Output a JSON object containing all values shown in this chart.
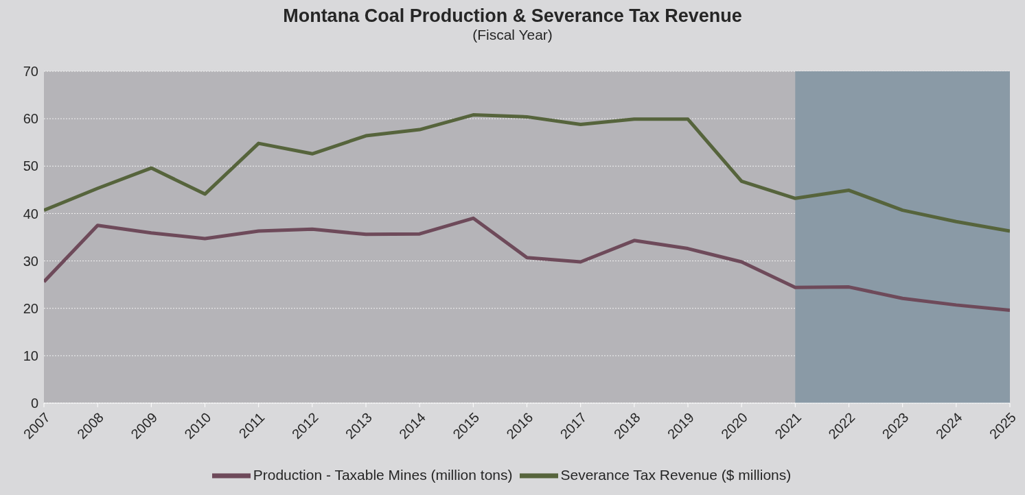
{
  "chart_data": {
    "type": "line",
    "title": "Montana Coal Production & Severance Tax Revenue",
    "subtitle": "(Fiscal Year)",
    "x": [
      2007,
      2008,
      2009,
      2010,
      2011,
      2012,
      2013,
      2014,
      2015,
      2016,
      2017,
      2018,
      2019,
      2020,
      2021,
      2022,
      2023,
      2024,
      2025
    ],
    "xlim": [
      2007,
      2025
    ],
    "xticks": [
      2007,
      2008,
      2009,
      2010,
      2011,
      2012,
      2013,
      2014,
      2015,
      2016,
      2017,
      2018,
      2019,
      2020,
      2021,
      2022,
      2023,
      2024,
      2025
    ],
    "ylim": [
      0,
      70
    ],
    "yticks": [
      0,
      10,
      20,
      30,
      40,
      50,
      60,
      70
    ],
    "series": [
      {
        "name": "Production - Taxable Mines (million tons)",
        "color": "#6e4a5a",
        "values": [
          25.6,
          37.5,
          35.9,
          34.7,
          36.3,
          36.7,
          35.6,
          35.7,
          39.0,
          30.7,
          29.8,
          34.3,
          32.6,
          29.8,
          24.4,
          24.5,
          22.1,
          20.7,
          19.6
        ]
      },
      {
        "name": "Severance Tax Revenue ($ millions)",
        "color": "#56643c",
        "values": [
          40.7,
          45.3,
          49.6,
          44.1,
          54.8,
          52.6,
          56.4,
          57.7,
          60.8,
          60.4,
          58.8,
          59.9,
          59.9,
          46.8,
          43.2,
          44.9,
          40.7,
          38.3,
          36.3
        ]
      }
    ],
    "bands": [
      {
        "axis": "x",
        "from": 2021,
        "to": 2025,
        "color": "#8a9aa6"
      }
    ],
    "grid": "y",
    "legend": "bottom",
    "marker": "none",
    "line_style": "solid"
  }
}
